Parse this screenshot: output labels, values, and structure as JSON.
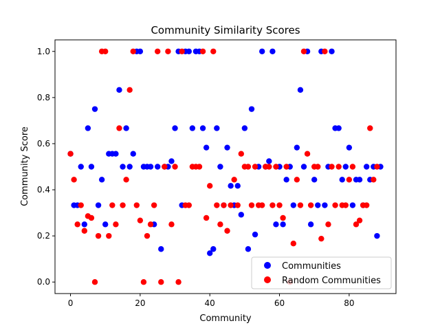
{
  "chart_data": {
    "type": "scatter",
    "title": "Community Similarity Scores",
    "xlabel": "Community",
    "ylabel": "Community Score",
    "xlim": [
      -4.45,
      93.45
    ],
    "ylim": [
      -0.05,
      1.05
    ],
    "x_ticks": [
      0,
      20,
      40,
      60,
      80
    ],
    "y_ticks": [
      0.0,
      0.2,
      0.4,
      0.6,
      0.8,
      1.0
    ],
    "grid": false,
    "legend_position": "lower right",
    "series": [
      {
        "name": "Communities",
        "color": "#0000ff",
        "points": [
          [
            0,
            0.556
          ],
          [
            1,
            0.333
          ],
          [
            2,
            0.333
          ],
          [
            3,
            0.5
          ],
          [
            4,
            0.25
          ],
          [
            5,
            0.667
          ],
          [
            6,
            0.5
          ],
          [
            7,
            0.75
          ],
          [
            8,
            0.333
          ],
          [
            9,
            0.444
          ],
          [
            10,
            0.25
          ],
          [
            11,
            0.556
          ],
          [
            12,
            0.556
          ],
          [
            13,
            0.556
          ],
          [
            14,
            0.833
          ],
          [
            15,
            0.5
          ],
          [
            16,
            0.667
          ],
          [
            17,
            0.5
          ],
          [
            18,
            0.556
          ],
          [
            19,
            1.0
          ],
          [
            20,
            1.0
          ],
          [
            21,
            0.5
          ],
          [
            22,
            0.5
          ],
          [
            23,
            0.5
          ],
          [
            24,
            0.25
          ],
          [
            25,
            0.5
          ],
          [
            26,
            0.143
          ],
          [
            27,
            0.5
          ],
          [
            28,
            0.5
          ],
          [
            29,
            0.524
          ],
          [
            30,
            0.667
          ],
          [
            31,
            1.0
          ],
          [
            32,
            0.333
          ],
          [
            33,
            1.0
          ],
          [
            34,
            1.0
          ],
          [
            35,
            0.667
          ],
          [
            36,
            1.0
          ],
          [
            37,
            1.0
          ],
          [
            38,
            0.667
          ],
          [
            39,
            0.583
          ],
          [
            40,
            0.125
          ],
          [
            41,
            0.143
          ],
          [
            42,
            0.667
          ],
          [
            43,
            0.5
          ],
          [
            44,
            0.333
          ],
          [
            45,
            0.583
          ],
          [
            46,
            0.417
          ],
          [
            47,
            0.333
          ],
          [
            48,
            0.417
          ],
          [
            49,
            0.292
          ],
          [
            50,
            0.667
          ],
          [
            51,
            0.143
          ],
          [
            52,
            0.75
          ],
          [
            53,
            0.206
          ],
          [
            54,
            0.5
          ],
          [
            55,
            1.0
          ],
          [
            56,
            0.5
          ],
          [
            57,
            0.524
          ],
          [
            58,
            1.0
          ],
          [
            59,
            0.25
          ],
          [
            60,
            0.5
          ],
          [
            61,
            0.25
          ],
          [
            62,
            0.444
          ],
          [
            63,
            0.5
          ],
          [
            64,
            0.333
          ],
          [
            65,
            0.583
          ],
          [
            66,
            0.833
          ],
          [
            67,
            0.5
          ],
          [
            68,
            1.0
          ],
          [
            69,
            0.25
          ],
          [
            70,
            0.444
          ],
          [
            71,
            0.333
          ],
          [
            72,
            1.0
          ],
          [
            73,
            0.333
          ],
          [
            74,
            0.5
          ],
          [
            75,
            1.0
          ],
          [
            76,
            0.667
          ],
          [
            77,
            0.667
          ],
          [
            78,
            0.444
          ],
          [
            79,
            0.5
          ],
          [
            80,
            0.583
          ],
          [
            81,
            0.333
          ],
          [
            82,
            0.444
          ],
          [
            83,
            0.444
          ],
          [
            84,
            0.333
          ],
          [
            85,
            0.5
          ],
          [
            86,
            0.444
          ],
          [
            87,
            0.5
          ],
          [
            88,
            0.2
          ],
          [
            89,
            0.5
          ]
        ]
      },
      {
        "name": "Random Communities",
        "color": "#ff0000",
        "points": [
          [
            0,
            0.556
          ],
          [
            1,
            0.444
          ],
          [
            2,
            0.25
          ],
          [
            3,
            0.333
          ],
          [
            4,
            0.222
          ],
          [
            5,
            0.286
          ],
          [
            6,
            0.278
          ],
          [
            7,
            0.0
          ],
          [
            8,
            0.2
          ],
          [
            9,
            1.0
          ],
          [
            10,
            1.0
          ],
          [
            11,
            0.2
          ],
          [
            12,
            0.333
          ],
          [
            13,
            0.25
          ],
          [
            14,
            0.667
          ],
          [
            15,
            0.333
          ],
          [
            16,
            0.444
          ],
          [
            17,
            0.833
          ],
          [
            18,
            1.0
          ],
          [
            19,
            0.333
          ],
          [
            20,
            0.267
          ],
          [
            21,
            0.0
          ],
          [
            22,
            0.2
          ],
          [
            23,
            0.25
          ],
          [
            24,
            0.333
          ],
          [
            25,
            1.0
          ],
          [
            26,
            0.0
          ],
          [
            27,
            0.5
          ],
          [
            28,
            1.0
          ],
          [
            29,
            0.25
          ],
          [
            30,
            0.5
          ],
          [
            31,
            0.0
          ],
          [
            32,
            1.0
          ],
          [
            33,
            0.333
          ],
          [
            34,
            0.333
          ],
          [
            35,
            0.5
          ],
          [
            36,
            0.5
          ],
          [
            37,
            0.5
          ],
          [
            38,
            1.0
          ],
          [
            39,
            0.278
          ],
          [
            40,
            0.417
          ],
          [
            41,
            1.0
          ],
          [
            42,
            0.333
          ],
          [
            43,
            0.25
          ],
          [
            44,
            0.333
          ],
          [
            45,
            0.222
          ],
          [
            46,
            0.333
          ],
          [
            47,
            0.444
          ],
          [
            48,
            0.333
          ],
          [
            49,
            0.556
          ],
          [
            50,
            0.5
          ],
          [
            51,
            0.5
          ],
          [
            52,
            0.333
          ],
          [
            53,
            0.5
          ],
          [
            54,
            0.333
          ],
          [
            55,
            0.333
          ],
          [
            56,
            0.5
          ],
          [
            57,
            0.5
          ],
          [
            58,
            0.333
          ],
          [
            59,
            0.5
          ],
          [
            60,
            0.333
          ],
          [
            61,
            0.278
          ],
          [
            62,
            0.5
          ],
          [
            63,
            0.0
          ],
          [
            64,
            0.167
          ],
          [
            65,
            0.444
          ],
          [
            66,
            0.333
          ],
          [
            67,
            1.0
          ],
          [
            68,
            0.556
          ],
          [
            69,
            0.333
          ],
          [
            70,
            0.5
          ],
          [
            71,
            0.5
          ],
          [
            72,
            0.188
          ],
          [
            73,
            1.0
          ],
          [
            74,
            0.25
          ],
          [
            75,
            0.5
          ],
          [
            76,
            0.333
          ],
          [
            77,
            0.5
          ],
          [
            78,
            0.333
          ],
          [
            79,
            0.333
          ],
          [
            80,
            0.444
          ],
          [
            81,
            0.5
          ],
          [
            82,
            0.25
          ],
          [
            83,
            0.267
          ],
          [
            84,
            0.333
          ],
          [
            85,
            0.333
          ],
          [
            86,
            0.667
          ],
          [
            87,
            0.444
          ],
          [
            88,
            0.5
          ]
        ]
      }
    ]
  }
}
